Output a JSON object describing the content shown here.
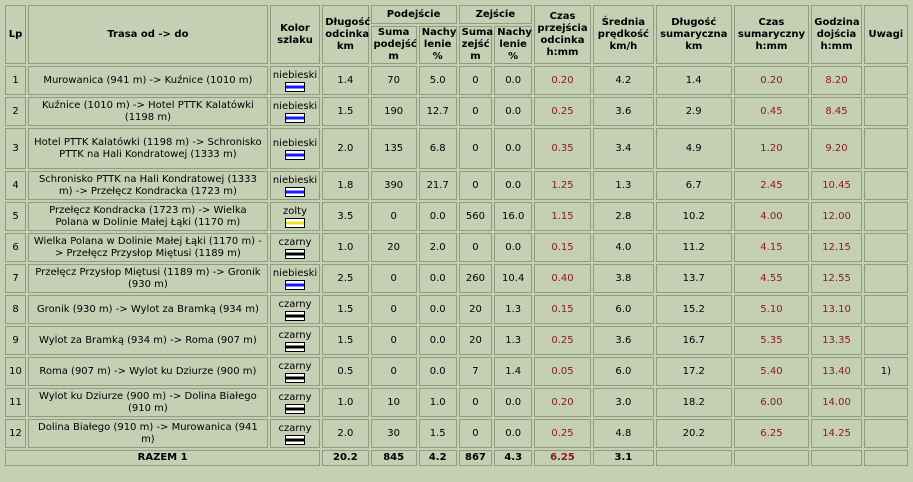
{
  "headers": {
    "lp": "Lp",
    "route": "Trasa od -> do",
    "color": "Kolor szlaku",
    "segment_length": "Długość odcinka km",
    "ascent_group": "Podejście",
    "ascent_sum": "Suma podejść m",
    "ascent_slope": "Nachy lenie %",
    "descent_group": "Zejście",
    "descent_sum": "Suma zejść m",
    "descent_slope": "Nachy lenie %",
    "segment_time": "Czas przejścia odcinka h:mm",
    "avg_speed": "Średnia prędkość km/h",
    "total_length": "Długość sumaryczna km",
    "total_time": "Czas sumaryczny h:mm",
    "arrival": "Godzina dojścia h:mm",
    "notes": "Uwagi"
  },
  "colors": {
    "niebieski": "#1a1aff",
    "zolty": "#f0e020",
    "czarny": "#000000",
    "time_red": "#8b1a1a"
  },
  "rows": [
    {
      "lp": "1",
      "route": "Murowanica (941 m) -> Kuźnice (1010 m)",
      "color": "niebieski",
      "len": "1.4",
      "up": "70",
      "up_slope": "5.0",
      "down": "0",
      "down_slope": "0.0",
      "time": "0.20",
      "speed": "4.2",
      "total_len": "1.4",
      "total_time": "0.20",
      "arrival": "8.20",
      "notes": ""
    },
    {
      "lp": "2",
      "route": "Kuźnice (1010 m) -> Hotel PTTK Kalatówki (1198 m)",
      "color": "niebieski",
      "len": "1.5",
      "up": "190",
      "up_slope": "12.7",
      "down": "0",
      "down_slope": "0.0",
      "time": "0.25",
      "speed": "3.6",
      "total_len": "2.9",
      "total_time": "0.45",
      "arrival": "8.45",
      "notes": ""
    },
    {
      "lp": "3",
      "route": "Hotel PTTK Kalatówki (1198 m) -> Schronisko PTTK na Hali Kondratowej (1333 m)",
      "color": "niebieski",
      "len": "2.0",
      "up": "135",
      "up_slope": "6.8",
      "down": "0",
      "down_slope": "0.0",
      "time": "0.35",
      "speed": "3.4",
      "total_len": "4.9",
      "total_time": "1.20",
      "arrival": "9.20",
      "notes": ""
    },
    {
      "lp": "4",
      "route": "Schronisko PTTK na Hali Kondratowej (1333 m) -> Przełęcz Kondracka (1723 m)",
      "color": "niebieski",
      "len": "1.8",
      "up": "390",
      "up_slope": "21.7",
      "down": "0",
      "down_slope": "0.0",
      "time": "1.25",
      "speed": "1.3",
      "total_len": "6.7",
      "total_time": "2.45",
      "arrival": "10.45",
      "notes": ""
    },
    {
      "lp": "5",
      "route": "Przełęcz Kondracka (1723 m) -> Wielka Polana w Dolinie Małej Łąki (1170 m)",
      "color": "zolty",
      "len": "3.5",
      "up": "0",
      "up_slope": "0.0",
      "down": "560",
      "down_slope": "16.0",
      "time": "1.15",
      "speed": "2.8",
      "total_len": "10.2",
      "total_time": "4.00",
      "arrival": "12.00",
      "notes": ""
    },
    {
      "lp": "6",
      "route": "Wielka Polana w Dolinie Małej Łąki (1170 m) -> Przełęcz Przysłop Miętusi (1189 m)",
      "color": "czarny",
      "len": "1.0",
      "up": "20",
      "up_slope": "2.0",
      "down": "0",
      "down_slope": "0.0",
      "time": "0.15",
      "speed": "4.0",
      "total_len": "11.2",
      "total_time": "4.15",
      "arrival": "12.15",
      "notes": ""
    },
    {
      "lp": "7",
      "route": "Przełęcz Przysłop Miętusi (1189 m) -> Gronik (930 m)",
      "color": "niebieski",
      "len": "2.5",
      "up": "0",
      "up_slope": "0.0",
      "down": "260",
      "down_slope": "10.4",
      "time": "0.40",
      "speed": "3.8",
      "total_len": "13.7",
      "total_time": "4.55",
      "arrival": "12.55",
      "notes": ""
    },
    {
      "lp": "8",
      "route": "Gronik (930 m) -> Wylot za Bramką (934 m)",
      "color": "czarny",
      "len": "1.5",
      "up": "0",
      "up_slope": "0.0",
      "down": "20",
      "down_slope": "1.3",
      "time": "0.15",
      "speed": "6.0",
      "total_len": "15.2",
      "total_time": "5.10",
      "arrival": "13.10",
      "notes": ""
    },
    {
      "lp": "9",
      "route": "Wylot za Bramką (934 m) -> Roma (907 m)",
      "color": "czarny",
      "len": "1.5",
      "up": "0",
      "up_slope": "0.0",
      "down": "20",
      "down_slope": "1.3",
      "time": "0.25",
      "speed": "3.6",
      "total_len": "16.7",
      "total_time": "5.35",
      "arrival": "13.35",
      "notes": ""
    },
    {
      "lp": "10",
      "route": "Roma (907 m) -> Wylot ku Dziurze (900 m)",
      "color": "czarny",
      "len": "0.5",
      "up": "0",
      "up_slope": "0.0",
      "down": "7",
      "down_slope": "1.4",
      "time": "0.05",
      "speed": "6.0",
      "total_len": "17.2",
      "total_time": "5.40",
      "arrival": "13.40",
      "notes": "1)"
    },
    {
      "lp": "11",
      "route": "Wylot ku Dziurze (900 m) -> Dolina Białego (910 m)",
      "color": "czarny",
      "len": "1.0",
      "up": "10",
      "up_slope": "1.0",
      "down": "0",
      "down_slope": "0.0",
      "time": "0.20",
      "speed": "3.0",
      "total_len": "18.2",
      "total_time": "6.00",
      "arrival": "14.00",
      "notes": ""
    },
    {
      "lp": "12",
      "route": "Dolina Białego (910 m) -> Murowanica (941 m)",
      "color": "czarny",
      "len": "2.0",
      "up": "30",
      "up_slope": "1.5",
      "down": "0",
      "down_slope": "0.0",
      "time": "0.25",
      "speed": "4.8",
      "total_len": "20.2",
      "total_time": "6.25",
      "arrival": "14.25",
      "notes": ""
    }
  ],
  "summary": {
    "label": "RAZEM 1",
    "len": "20.2",
    "up": "845",
    "up_slope": "4.2",
    "down": "867",
    "down_slope": "4.3",
    "time": "6.25",
    "speed": "3.1"
  }
}
